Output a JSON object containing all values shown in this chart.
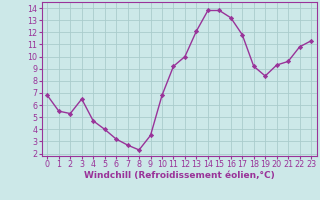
{
  "x": [
    0,
    1,
    2,
    3,
    4,
    5,
    6,
    7,
    8,
    9,
    10,
    11,
    12,
    13,
    14,
    15,
    16,
    17,
    18,
    19,
    20,
    21,
    22,
    23
  ],
  "y": [
    6.8,
    5.5,
    5.3,
    6.5,
    4.7,
    4.0,
    3.2,
    2.7,
    2.3,
    3.5,
    6.8,
    9.2,
    10.0,
    12.1,
    13.8,
    13.8,
    13.2,
    11.8,
    9.2,
    8.4,
    9.3,
    9.6,
    10.8,
    11.3
  ],
  "line_color": "#993399",
  "marker": "D",
  "marker_size": 2.2,
  "linewidth": 1.0,
  "xlabel": "Windchill (Refroidissement éolien,°C)",
  "xlabel_fontsize": 6.5,
  "bg_color": "#cce8e8",
  "grid_color": "#aacccc",
  "yticks": [
    2,
    3,
    4,
    5,
    6,
    7,
    8,
    9,
    10,
    11,
    12,
    13,
    14
  ],
  "xticks": [
    0,
    1,
    2,
    3,
    4,
    5,
    6,
    7,
    8,
    9,
    10,
    11,
    12,
    13,
    14,
    15,
    16,
    17,
    18,
    19,
    20,
    21,
    22,
    23
  ],
  "ylim": [
    1.8,
    14.5
  ],
  "xlim": [
    -0.5,
    23.5
  ],
  "tick_fontsize": 5.8,
  "tick_color": "#993399",
  "spine_color": "#993399"
}
